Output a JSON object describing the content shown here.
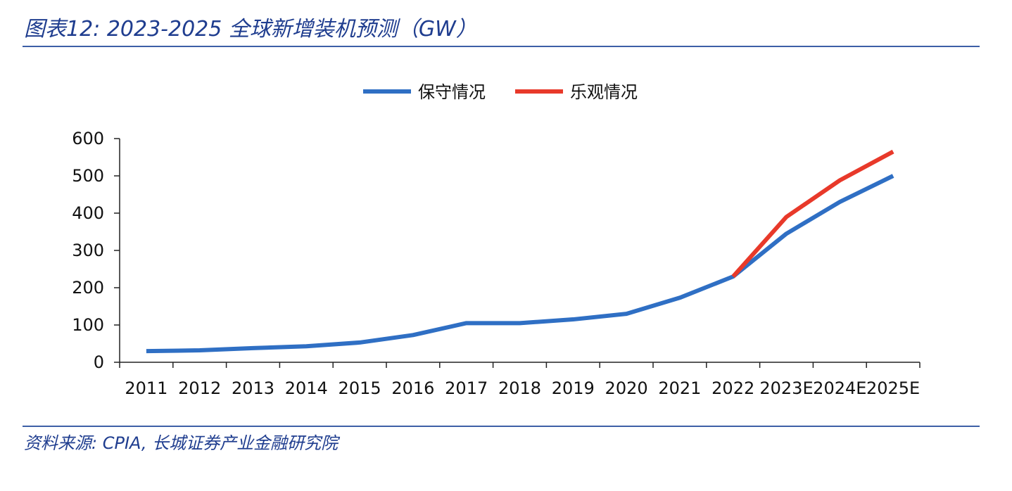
{
  "header": {
    "title": "图表12: 2023-2025 全球新增装机预测（GW）"
  },
  "footer": {
    "source": "资料来源: CPIA, 长城证券产业金融研究院"
  },
  "chart_data": {
    "type": "line",
    "title": "",
    "xlabel": "",
    "ylabel": "",
    "categories": [
      "2011",
      "2012",
      "2013",
      "2014",
      "2015",
      "2016",
      "2017",
      "2018",
      "2019",
      "2020",
      "2021",
      "2022",
      "2023E",
      "2024E",
      "2025E"
    ],
    "ylim": [
      0,
      600
    ],
    "yticks": [
      0,
      100,
      200,
      300,
      400,
      500,
      600
    ],
    "legend_position": "top-center",
    "grid": false,
    "series": [
      {
        "name": "保守情况",
        "color": "#2f6fc4",
        "values": [
          30,
          32,
          38,
          43,
          53,
          73,
          105,
          105,
          115,
          130,
          173,
          230,
          345,
          430,
          500
        ]
      },
      {
        "name": "乐观情况",
        "color": "#e8392a",
        "values": [
          null,
          null,
          null,
          null,
          null,
          null,
          null,
          null,
          null,
          null,
          null,
          230,
          390,
          488,
          565
        ]
      }
    ]
  }
}
